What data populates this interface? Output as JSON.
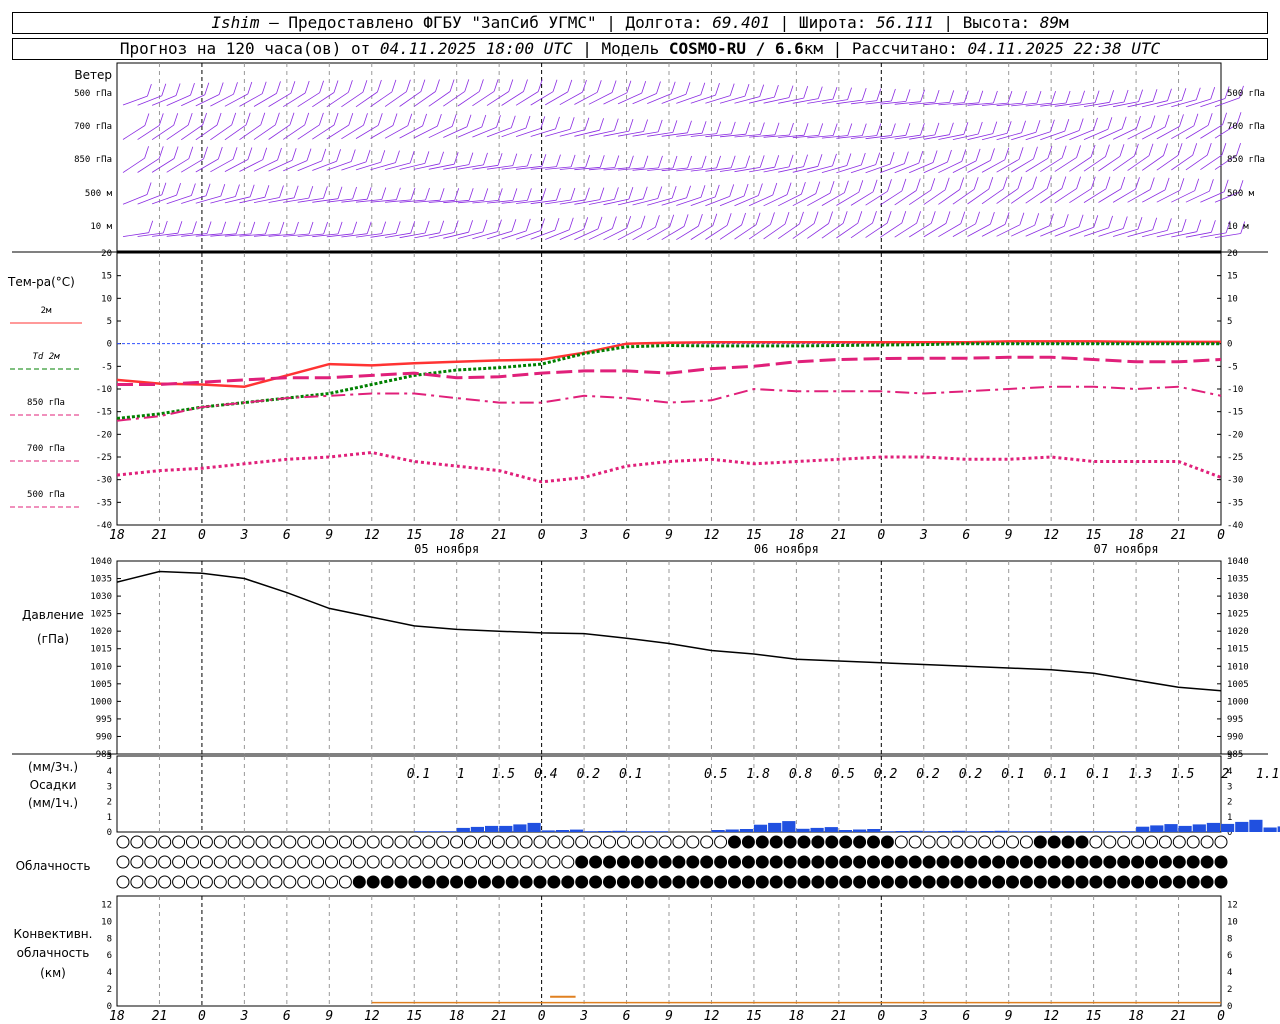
{
  "header": {
    "station": "Ishim",
    "provider": " — Предоставлено ФГБУ \"ЗапСиб УГМС\" | Долгота: ",
    "lon": "69.401",
    "lat_label": " | Широта: ",
    "lat": "56.111",
    "alt_label": " | Высота: ",
    "alt": "89",
    "alt_unit": "м",
    "forecast_prefix": "Прогноз на 120 часа(ов) от ",
    "forecast_start": "04.11.2025 18:00 UTC",
    "model_prefix": " | Модель ",
    "model": "COSMO-RU / 6.6",
    "model_unit": "км",
    "calc_prefix": " | Рассчитано: ",
    "calc_time": "04.11.2025 22:38 UTC"
  },
  "panels": {
    "wind": {
      "title": "Ветер",
      "levels": [
        "500 гПа",
        "700 гПа",
        "850 гПа",
        "500 м",
        "10  м"
      ]
    },
    "temperature": {
      "title": "Тем-ра(°С)",
      "legend": [
        {
          "label": "2м",
          "color": "#ff3333"
        },
        {
          "label": "Td  2м",
          "color": "#008000"
        },
        {
          "label": "850 гПа",
          "color": "#e0207a"
        },
        {
          "label": "700 гПа",
          "color": "#e0207a"
        },
        {
          "label": "500 гПа",
          "color": "#e0207a"
        }
      ]
    },
    "pressure": {
      "title": "Давление",
      "unit": "(гПа)"
    },
    "precip": {
      "unit_top": "(мм/3ч.)",
      "title": "Осадки",
      "unit_bottom": "(мм/1ч.)"
    },
    "cloud": {
      "title": "Облачность"
    },
    "convective": {
      "title1": "Конвективн.",
      "title2": "облачность",
      "unit": "(км)"
    }
  },
  "chart_data": {
    "type": "line",
    "x_hours_labels": [
      "18",
      "21",
      "0",
      "3",
      "6",
      "9",
      "12",
      "15",
      "18",
      "21",
      "0",
      "3",
      "6",
      "9",
      "12",
      "15",
      "18",
      "21",
      "0",
      "3",
      "6",
      "9",
      "12",
      "15",
      "18",
      "21",
      "0"
    ],
    "date_labels": [
      "05 ноября",
      "06 ноября",
      "07 ноября"
    ],
    "temperature": {
      "ylim": [
        -40,
        20
      ],
      "ticks": [
        20,
        15,
        10,
        5,
        0,
        -5,
        -10,
        -15,
        -20,
        -25,
        -30,
        -35,
        -40
      ],
      "series": [
        {
          "name": "2м",
          "color": "#ff3333",
          "values": [
            -8,
            -8.8,
            -9,
            -9.5,
            -7,
            -4.5,
            -4.8,
            -4.3,
            -4,
            -3.7,
            -3.5,
            -2,
            0,
            0.2,
            0.3,
            0.3,
            0.3,
            0.3,
            0.3,
            0.3,
            0.3,
            0.5,
            0.5,
            0.5,
            0.4,
            0.4,
            0.4
          ]
        },
        {
          "name": "Td 2м",
          "color": "#008000",
          "values": [
            -16.5,
            -15.5,
            -14,
            -13,
            -12,
            -11,
            -9,
            -7,
            -5.8,
            -5.3,
            -4.5,
            -2.2,
            -0.7,
            -0.4,
            -0.5,
            -0.5,
            -0.5,
            -0.4,
            -0.3,
            -0.2,
            0,
            0,
            0,
            0,
            0,
            0,
            0
          ]
        },
        {
          "name": "850 гПа",
          "color": "#e0207a",
          "values": [
            -9,
            -9,
            -8.5,
            -8,
            -7.5,
            -7.5,
            -7,
            -6.5,
            -7.5,
            -7.3,
            -6.5,
            -6,
            -6,
            -6.5,
            -5.5,
            -5,
            -4,
            -3.5,
            -3.3,
            -3.2,
            -3.2,
            -3,
            -3,
            -3.5,
            -4,
            -4,
            -3.5
          ]
        },
        {
          "name": "700 гПа",
          "color": "#e0207a",
          "values": [
            -17,
            -16,
            -14,
            -13,
            -12,
            -11.5,
            -11,
            -11,
            -12,
            -13,
            -13,
            -11.5,
            -12,
            -13,
            -12.5,
            -10,
            -10.5,
            -10.5,
            -10.5,
            -11,
            -10.5,
            -10,
            -9.5,
            -9.5,
            -10,
            -9.5,
            -11.5
          ]
        },
        {
          "name": "500 гПа",
          "color": "#e0207a",
          "values": [
            -29,
            -28,
            -27.5,
            -26.5,
            -25.5,
            -25,
            -24,
            -26,
            -27,
            -28,
            -30.5,
            -29.5,
            -27,
            -26,
            -25.5,
            -26.5,
            -26,
            -25.5,
            -25,
            -25,
            -25.5,
            -25.5,
            -25,
            -26,
            -26,
            -26,
            -29.5
          ]
        }
      ]
    },
    "pressure": {
      "ylim": [
        985,
        1040
      ],
      "ticks": [
        1040,
        1035,
        1030,
        1025,
        1020,
        1015,
        1010,
        1005,
        1000,
        995,
        990,
        985
      ],
      "values": [
        1034,
        1037,
        1036.5,
        1035,
        1031,
        1026.5,
        1024,
        1021.5,
        1020.5,
        1020,
        1019.5,
        1019.3,
        1018,
        1016.5,
        1014.5,
        1013.5,
        1012,
        1011.5,
        1011,
        1010.5,
        1010,
        1009.5,
        1009,
        1008,
        1006,
        1004,
        1003
      ]
    },
    "precip_3h_labels": [
      {
        "hour_index": 7.5,
        "text": "0.1"
      },
      {
        "hour_index": 8.5,
        "text": "1"
      },
      {
        "hour_index": 9.5,
        "text": "1.5"
      },
      {
        "hour_index": 10.5,
        "text": "0.4"
      },
      {
        "hour_index": 11.5,
        "text": "0.2"
      },
      {
        "hour_index": 12.5,
        "text": "0.1"
      },
      {
        "hour_index": 14.5,
        "text": "0.5"
      },
      {
        "hour_index": 15.5,
        "text": "1.8"
      },
      {
        "hour_index": 16.5,
        "text": "0.8"
      },
      {
        "hour_index": 17.5,
        "text": "0.5"
      },
      {
        "hour_index": 18.5,
        "text": "0.2"
      },
      {
        "hour_index": 19.5,
        "text": "0.2"
      },
      {
        "hour_index": 20.5,
        "text": "0.2"
      },
      {
        "hour_index": 21.5,
        "text": "0.1"
      },
      {
        "hour_index": 22.5,
        "text": "0.1"
      },
      {
        "hour_index": 23.5,
        "text": "0.1"
      },
      {
        "hour_index": 24.5,
        "text": "1.3"
      },
      {
        "hour_index": 25.5,
        "text": "1.5"
      },
      {
        "hour_index": 26.5,
        "text": "2"
      },
      {
        "hour_index": 27.5,
        "text": "1.1"
      }
    ],
    "precip_ticks": [
      5,
      4,
      3,
      2,
      1,
      0
    ],
    "convective_ticks": [
      12,
      10,
      8,
      6,
      4,
      2,
      0
    ]
  }
}
